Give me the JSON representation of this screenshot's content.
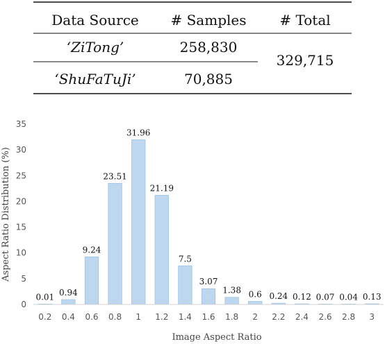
{
  "table": {
    "headers": [
      "Data Source",
      "# Samples",
      "# Total"
    ],
    "rows": [
      {
        "source": "‘ZiTong’",
        "samples": "258,830"
      },
      {
        "source": "‘ShuFaTuJi’",
        "samples": "70,885"
      }
    ],
    "total": "329,715"
  },
  "chart_data": {
    "type": "bar",
    "categories": [
      "0.2",
      "0.4",
      "0.6",
      "0.8",
      "1",
      "1.2",
      "1.4",
      "1.6",
      "1.8",
      "2",
      "2.2",
      "2.4",
      "2.6",
      "2.8",
      "3"
    ],
    "values": [
      0.01,
      0.94,
      9.24,
      23.51,
      31.96,
      21.19,
      7.5,
      3.07,
      1.38,
      0.6,
      0.24,
      0.12,
      0.07,
      0.04,
      0.13
    ],
    "data_labels": [
      "0.01",
      "0.94",
      "9.24",
      "23.51",
      "31.96",
      "21.19",
      "7.5",
      "3.07",
      "1.38",
      "0.6",
      "0.24",
      "0.12",
      "0.07",
      "0.04",
      "0.13"
    ],
    "xlabel": "Image Aspect Ratio",
    "ylabel": "Aspect Ratio Distribution (%)",
    "ylim": [
      0,
      35
    ],
    "yticks": [
      "0",
      "5",
      "10",
      "15",
      "20",
      "25",
      "30",
      "35"
    ],
    "bar_color": "#bdd7ee",
    "bar_edge_color": "#9dc3e6",
    "grid": false
  }
}
